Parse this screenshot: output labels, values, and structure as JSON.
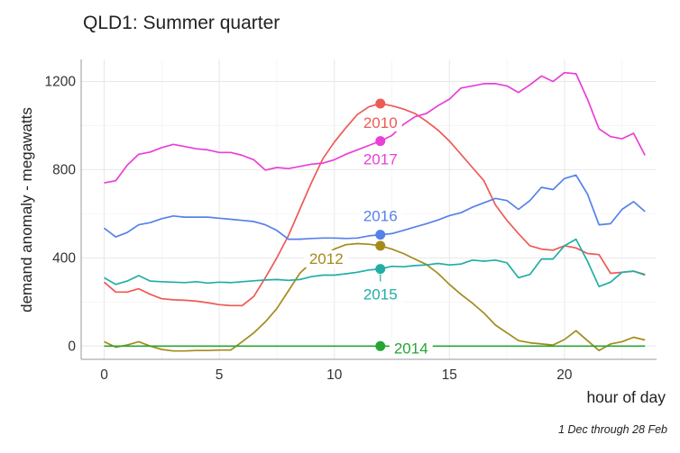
{
  "chart_data": {
    "type": "line",
    "title": "QLD1: Summer quarter",
    "caption": "1 Dec through 28 Feb",
    "xlabel": "hour of day",
    "ylabel": "demand anomaly - megawatts",
    "xlim": [
      -1,
      24
    ],
    "ylim": [
      -60,
      1300
    ],
    "xticks": [
      0,
      5,
      10,
      15,
      20
    ],
    "yticks": [
      0,
      400,
      800,
      1200
    ],
    "grid": true,
    "legend": "direct labels at hour 12",
    "x": [
      0,
      0.5,
      1,
      1.5,
      2,
      2.5,
      3,
      3.5,
      4,
      4.5,
      5,
      5.5,
      6,
      6.5,
      7,
      7.5,
      8,
      8.5,
      9,
      9.5,
      10,
      10.5,
      11,
      11.5,
      12,
      12.5,
      13,
      13.5,
      14,
      14.5,
      15,
      15.5,
      16,
      16.5,
      17,
      17.5,
      18,
      18.5,
      19,
      19.5,
      20,
      20.5,
      21,
      21.5,
      22,
      22.5,
      23,
      23.5
    ],
    "series": [
      {
        "name": "2010",
        "color": "#ee5a55",
        "marker_x": 12,
        "marker_y": 1100,
        "values": [
          290,
          245,
          245,
          260,
          235,
          215,
          210,
          208,
          204,
          197,
          188,
          184,
          184,
          225,
          310,
          400,
          500,
          620,
          740,
          850,
          925,
          990,
          1050,
          1085,
          1100,
          1090,
          1075,
          1055,
          1020,
          980,
          930,
          870,
          810,
          750,
          640,
          570,
          510,
          455,
          440,
          435,
          455,
          445,
          420,
          415,
          330,
          335,
          340,
          325
        ]
      },
      {
        "name": "2017",
        "color": "#e93fd6",
        "marker_x": 12,
        "marker_y": 930,
        "values": [
          740,
          750,
          820,
          870,
          880,
          900,
          915,
          905,
          895,
          890,
          878,
          878,
          865,
          845,
          798,
          810,
          805,
          815,
          825,
          830,
          845,
          870,
          890,
          910,
          930,
          955,
          1005,
          1040,
          1055,
          1090,
          1120,
          1170,
          1180,
          1190,
          1190,
          1180,
          1150,
          1185,
          1225,
          1200,
          1240,
          1235,
          1120,
          985,
          950,
          940,
          965,
          865
        ]
      },
      {
        "name": "2016",
        "color": "#5681ea",
        "marker_x": 12,
        "marker_y": 505,
        "values": [
          535,
          495,
          515,
          550,
          560,
          578,
          590,
          585,
          585,
          585,
          580,
          575,
          570,
          565,
          550,
          525,
          485,
          485,
          488,
          490,
          490,
          488,
          490,
          500,
          505,
          510,
          525,
          540,
          555,
          572,
          592,
          605,
          630,
          650,
          670,
          660,
          620,
          660,
          720,
          710,
          760,
          775,
          690,
          550,
          555,
          620,
          655,
          610
        ]
      },
      {
        "name": "2012",
        "color": "#a48b1a",
        "marker_x": 12,
        "marker_y": 455,
        "values": [
          20,
          -5,
          5,
          20,
          0,
          -15,
          -22,
          -22,
          -20,
          -20,
          -18,
          -18,
          20,
          60,
          110,
          170,
          250,
          330,
          380,
          410,
          440,
          460,
          465,
          462,
          455,
          440,
          420,
          395,
          370,
          330,
          280,
          235,
          195,
          150,
          95,
          60,
          25,
          15,
          10,
          5,
          30,
          70,
          25,
          -20,
          10,
          20,
          40,
          28
        ]
      },
      {
        "name": "2015",
        "color": "#21aea6",
        "marker_x": 12,
        "marker_y": 350,
        "values": [
          310,
          280,
          295,
          320,
          295,
          292,
          290,
          288,
          292,
          286,
          290,
          288,
          292,
          296,
          300,
          302,
          298,
          302,
          315,
          322,
          322,
          328,
          335,
          345,
          350,
          362,
          360,
          365,
          368,
          375,
          368,
          372,
          390,
          385,
          390,
          378,
          310,
          325,
          395,
          395,
          455,
          485,
          385,
          270,
          290,
          335,
          340,
          322
        ]
      },
      {
        "name": "2014",
        "color": "#27a534",
        "marker_x": 12,
        "marker_y": 0,
        "values": [
          0,
          0,
          0,
          0,
          0,
          0,
          0,
          0,
          0,
          0,
          0,
          0,
          0,
          0,
          0,
          0,
          0,
          0,
          0,
          0,
          0,
          0,
          0,
          0,
          0,
          0,
          0,
          0,
          0,
          0,
          0,
          0,
          0,
          0,
          0,
          0,
          0,
          0,
          0,
          0,
          0,
          0,
          0,
          0,
          0,
          0,
          0,
          0
        ]
      }
    ]
  }
}
